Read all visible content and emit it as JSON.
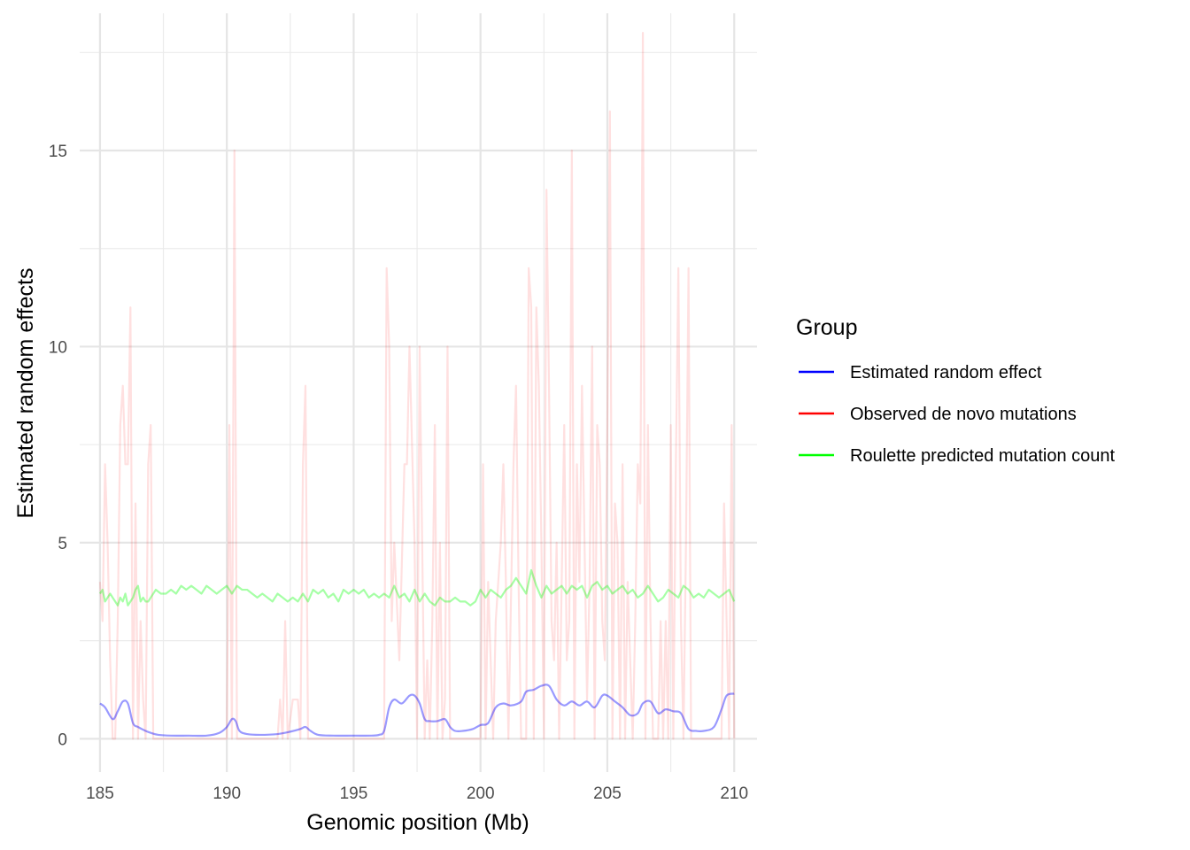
{
  "chart_data": {
    "type": "line",
    "xlabel": "Genomic position (Mb)",
    "ylabel": "Estimated random effects",
    "xlim": [
      184.2,
      210.9
    ],
    "ylim": [
      -0.85,
      18.5
    ],
    "x_ticks": [
      185,
      190,
      195,
      200,
      205,
      210
    ],
    "x_tick_labels": [
      "185",
      "190",
      "195",
      "200",
      "205",
      "210"
    ],
    "y_ticks": [
      0,
      5,
      10,
      15
    ],
    "y_tick_labels": [
      "0",
      "5",
      "10",
      "15"
    ],
    "grid": true,
    "legend": {
      "title": "Group",
      "position": "right",
      "entries": [
        {
          "label": "Estimated random effect",
          "color": "#0000ff"
        },
        {
          "label": "Observed de novo mutations",
          "color": "#ff0000"
        },
        {
          "label": "Roulette predicted mutation count",
          "color": "#00ff00"
        }
      ]
    },
    "series": [
      {
        "name": "Observed de novo mutations",
        "color": "#ff0000",
        "opacity": 0.12,
        "x": [
          185.0,
          185.1,
          185.2,
          185.3,
          185.4,
          185.5,
          185.6,
          185.7,
          185.8,
          185.9,
          186.0,
          186.1,
          186.2,
          186.3,
          186.4,
          186.5,
          186.6,
          186.7,
          186.8,
          186.9,
          187.0,
          187.1,
          190.0,
          190.1,
          190.2,
          190.3,
          190.4,
          192.0,
          192.1,
          192.2,
          192.3,
          192.4,
          192.6,
          192.8,
          192.9,
          193.0,
          193.1,
          193.2,
          193.3,
          196.2,
          196.3,
          196.4,
          196.5,
          196.6,
          196.8,
          197.0,
          197.1,
          197.2,
          197.4,
          197.5,
          197.6,
          197.7,
          197.8,
          197.9,
          198.0,
          198.1,
          198.2,
          198.3,
          198.4,
          198.5,
          198.6,
          198.7,
          198.8,
          198.9,
          200.0,
          200.1,
          200.2,
          200.3,
          200.5,
          200.6,
          200.8,
          200.9,
          201.0,
          201.1,
          201.3,
          201.4,
          201.5,
          201.6,
          201.7,
          201.8,
          201.9,
          202.0,
          202.1,
          202.2,
          202.3,
          202.4,
          202.5,
          202.6,
          202.7,
          202.8,
          202.9,
          203.0,
          203.1,
          203.2,
          203.3,
          203.4,
          203.5,
          203.6,
          203.7,
          203.8,
          203.9,
          204.0,
          204.1,
          204.2,
          204.3,
          204.4,
          204.5,
          204.6,
          204.7,
          204.8,
          204.9,
          205.0,
          205.1,
          205.2,
          205.3,
          205.4,
          205.5,
          205.6,
          205.7,
          205.8,
          205.9,
          206.0,
          206.1,
          206.2,
          206.3,
          206.4,
          206.5,
          206.6,
          206.7,
          206.8,
          206.9,
          207.0,
          207.1,
          207.2,
          207.3,
          207.4,
          207.5,
          207.6,
          207.7,
          207.8,
          207.9,
          208.0,
          208.1,
          208.2,
          208.3,
          208.4,
          208.5,
          209.5,
          209.6,
          209.7,
          209.8,
          209.9,
          210.0
        ],
        "y": [
          4,
          3,
          7,
          5,
          2,
          0,
          0,
          3,
          8,
          9,
          7,
          7,
          11,
          0,
          6,
          0,
          3,
          1,
          0,
          7,
          8,
          0,
          0,
          8,
          0,
          15,
          0,
          0,
          1,
          0,
          3,
          0,
          1,
          1,
          0,
          7,
          9,
          0,
          0,
          0,
          12,
          10,
          3,
          5,
          2,
          7,
          7,
          10,
          5,
          0,
          10,
          5,
          0,
          2,
          0,
          3,
          8,
          0,
          5,
          0,
          1,
          10,
          0,
          0,
          0,
          7,
          0,
          4,
          0,
          3,
          5,
          7,
          4,
          0,
          7,
          9,
          4,
          0,
          0,
          0,
          12,
          11,
          0,
          11,
          9,
          5,
          0,
          14,
          9,
          3,
          2,
          5,
          0,
          4,
          8,
          2,
          3,
          15,
          0,
          7,
          4,
          9,
          5,
          1,
          4,
          10,
          0,
          8,
          7,
          3,
          2,
          8,
          16,
          0,
          6,
          5,
          0,
          7,
          0,
          4,
          2,
          0,
          3,
          7,
          6,
          18,
          0,
          8,
          3,
          0,
          0,
          0,
          3,
          0,
          3,
          0,
          8,
          0,
          7,
          12,
          3,
          0,
          5,
          12,
          0,
          0,
          0,
          0,
          6,
          3,
          0,
          8,
          0
        ]
      },
      {
        "name": "Roulette predicted mutation count",
        "color": "#00ff00",
        "opacity": 0.35,
        "x": [
          185.0,
          185.1,
          185.2,
          185.3,
          185.4,
          185.5,
          185.6,
          185.7,
          185.8,
          185.9,
          186.0,
          186.1,
          186.2,
          186.3,
          186.4,
          186.5,
          186.6,
          186.7,
          186.8,
          186.9,
          187.0,
          187.2,
          187.4,
          187.6,
          187.8,
          188.0,
          188.2,
          188.4,
          188.6,
          188.8,
          189.0,
          189.2,
          189.4,
          189.6,
          189.8,
          190.0,
          190.2,
          190.4,
          190.6,
          190.8,
          191.0,
          191.2,
          191.4,
          191.6,
          191.8,
          192.0,
          192.2,
          192.4,
          192.6,
          192.8,
          193.0,
          193.2,
          193.4,
          193.6,
          193.8,
          194.0,
          194.2,
          194.4,
          194.6,
          194.8,
          195.0,
          195.2,
          195.4,
          195.6,
          195.8,
          196.0,
          196.2,
          196.4,
          196.6,
          196.8,
          197.0,
          197.2,
          197.4,
          197.6,
          197.8,
          198.0,
          198.2,
          198.4,
          198.6,
          198.8,
          199.0,
          199.2,
          199.4,
          199.6,
          199.8,
          200.0,
          200.2,
          200.4,
          200.6,
          200.8,
          201.0,
          201.2,
          201.4,
          201.6,
          201.8,
          202.0,
          202.2,
          202.4,
          202.6,
          202.8,
          203.0,
          203.2,
          203.4,
          203.6,
          203.8,
          204.0,
          204.2,
          204.4,
          204.6,
          204.8,
          205.0,
          205.2,
          205.4,
          205.6,
          205.8,
          206.0,
          206.2,
          206.4,
          206.6,
          206.8,
          207.0,
          207.2,
          207.4,
          207.6,
          207.8,
          208.0,
          208.2,
          208.4,
          208.6,
          208.8,
          209.0,
          209.2,
          209.4,
          209.6,
          209.8,
          210.0
        ],
        "y": [
          3.7,
          3.8,
          3.5,
          3.6,
          3.7,
          3.6,
          3.5,
          3.4,
          3.6,
          3.5,
          3.7,
          3.4,
          3.5,
          3.6,
          3.8,
          3.9,
          3.5,
          3.6,
          3.5,
          3.5,
          3.6,
          3.8,
          3.7,
          3.7,
          3.8,
          3.7,
          3.9,
          3.8,
          3.9,
          3.8,
          3.7,
          3.9,
          3.8,
          3.7,
          3.8,
          3.9,
          3.7,
          3.9,
          3.8,
          3.8,
          3.7,
          3.6,
          3.7,
          3.6,
          3.5,
          3.7,
          3.6,
          3.5,
          3.6,
          3.5,
          3.7,
          3.5,
          3.8,
          3.7,
          3.8,
          3.6,
          3.7,
          3.5,
          3.8,
          3.7,
          3.8,
          3.7,
          3.8,
          3.6,
          3.7,
          3.6,
          3.7,
          3.6,
          3.9,
          3.6,
          3.7,
          3.5,
          3.8,
          3.5,
          3.7,
          3.5,
          3.4,
          3.6,
          3.5,
          3.5,
          3.6,
          3.5,
          3.5,
          3.4,
          3.5,
          3.8,
          3.6,
          3.8,
          3.7,
          3.6,
          3.8,
          3.9,
          4.1,
          3.9,
          3.7,
          4.3,
          3.9,
          3.6,
          3.9,
          3.7,
          3.8,
          3.9,
          3.7,
          3.9,
          3.8,
          3.9,
          3.6,
          3.9,
          4.0,
          3.8,
          3.9,
          3.7,
          3.8,
          3.9,
          3.7,
          3.8,
          3.6,
          3.7,
          3.9,
          3.7,
          3.5,
          3.6,
          3.8,
          3.7,
          3.6,
          3.9,
          3.8,
          3.6,
          3.7,
          3.6,
          3.8,
          3.7,
          3.6,
          3.7,
          3.8,
          3.5
        ]
      },
      {
        "name": "Estimated random effect",
        "color": "#0000ff",
        "opacity": 0.4,
        "smooth": true,
        "x": [
          185.0,
          185.2,
          185.5,
          185.7,
          185.9,
          186.1,
          186.3,
          186.5,
          186.8,
          187.0,
          187.3,
          187.8,
          188.5,
          189.2,
          189.7,
          190.0,
          190.2,
          190.35,
          190.5,
          190.8,
          191.3,
          192.0,
          192.5,
          192.9,
          193.1,
          193.3,
          193.6,
          194.2,
          195.0,
          195.7,
          196.0,
          196.2,
          196.4,
          196.6,
          196.9,
          197.2,
          197.4,
          197.6,
          197.8,
          198.0,
          198.3,
          198.6,
          198.8,
          199.0,
          199.3,
          199.7,
          200.0,
          200.3,
          200.6,
          200.9,
          201.2,
          201.6,
          201.8,
          202.1,
          202.4,
          202.7,
          203.0,
          203.3,
          203.6,
          203.9,
          204.2,
          204.5,
          204.8,
          205.0,
          205.3,
          205.6,
          205.9,
          206.2,
          206.4,
          206.7,
          207.0,
          207.3,
          207.6,
          207.9,
          208.2,
          208.5,
          208.8,
          209.2,
          209.5,
          209.7,
          210.0
        ],
        "y": [
          0.9,
          0.8,
          0.5,
          0.7,
          0.95,
          0.9,
          0.4,
          0.3,
          0.2,
          0.15,
          0.1,
          0.08,
          0.08,
          0.08,
          0.15,
          0.3,
          0.5,
          0.45,
          0.2,
          0.12,
          0.1,
          0.12,
          0.18,
          0.25,
          0.3,
          0.2,
          0.1,
          0.08,
          0.08,
          0.08,
          0.1,
          0.2,
          0.8,
          1.0,
          0.9,
          1.1,
          1.1,
          0.9,
          0.5,
          0.45,
          0.45,
          0.5,
          0.3,
          0.2,
          0.2,
          0.25,
          0.35,
          0.4,
          0.8,
          0.9,
          0.85,
          0.95,
          1.2,
          1.25,
          1.35,
          1.35,
          1.0,
          0.85,
          0.95,
          0.85,
          0.95,
          0.8,
          1.1,
          1.1,
          0.95,
          0.8,
          0.6,
          0.65,
          0.9,
          0.95,
          0.65,
          0.75,
          0.7,
          0.65,
          0.25,
          0.2,
          0.2,
          0.3,
          0.75,
          1.1,
          1.15
        ]
      }
    ]
  }
}
